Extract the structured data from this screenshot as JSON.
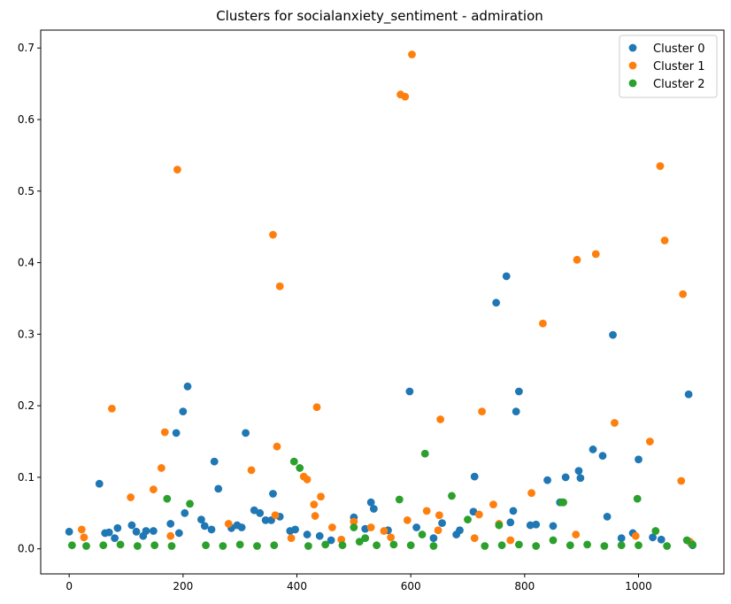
{
  "chart_data": {
    "type": "scatter",
    "title": "Clusters for socialanxiety_sentiment - admiration",
    "xlabel": "",
    "ylabel": "",
    "xlim": [
      -50,
      1150
    ],
    "ylim": [
      -0.035,
      0.725
    ],
    "xticks": [
      0,
      200,
      400,
      600,
      800,
      1000
    ],
    "yticks": [
      0.0,
      0.1,
      0.2,
      0.3,
      0.4,
      0.5,
      0.6,
      0.7
    ],
    "grid": false,
    "legend_position": "top-right",
    "series": [
      {
        "name": "Cluster 0",
        "color": "#1f77b4",
        "points": [
          [
            0,
            0.024
          ],
          [
            53,
            0.091
          ],
          [
            63,
            0.022
          ],
          [
            70,
            0.023
          ],
          [
            80,
            0.015
          ],
          [
            85,
            0.029
          ],
          [
            110,
            0.033
          ],
          [
            118,
            0.024
          ],
          [
            130,
            0.018
          ],
          [
            135,
            0.025
          ],
          [
            148,
            0.025
          ],
          [
            178,
            0.035
          ],
          [
            188,
            0.162
          ],
          [
            193,
            0.022
          ],
          [
            200,
            0.192
          ],
          [
            203,
            0.05
          ],
          [
            208,
            0.227
          ],
          [
            232,
            0.041
          ],
          [
            238,
            0.032
          ],
          [
            250,
            0.027
          ],
          [
            255,
            0.122
          ],
          [
            262,
            0.084
          ],
          [
            285,
            0.029
          ],
          [
            295,
            0.033
          ],
          [
            303,
            0.03
          ],
          [
            310,
            0.162
          ],
          [
            325,
            0.054
          ],
          [
            335,
            0.05
          ],
          [
            345,
            0.04
          ],
          [
            355,
            0.04
          ],
          [
            358,
            0.077
          ],
          [
            370,
            0.045
          ],
          [
            388,
            0.025
          ],
          [
            397,
            0.027
          ],
          [
            418,
            0.02
          ],
          [
            440,
            0.018
          ],
          [
            460,
            0.012
          ],
          [
            500,
            0.044
          ],
          [
            520,
            0.028
          ],
          [
            530,
            0.065
          ],
          [
            535,
            0.056
          ],
          [
            560,
            0.026
          ],
          [
            598,
            0.22
          ],
          [
            610,
            0.03
          ],
          [
            640,
            0.015
          ],
          [
            655,
            0.036
          ],
          [
            680,
            0.02
          ],
          [
            686,
            0.026
          ],
          [
            712,
            0.101
          ],
          [
            710,
            0.052
          ],
          [
            750,
            0.344
          ],
          [
            768,
            0.381
          ],
          [
            775,
            0.037
          ],
          [
            780,
            0.053
          ],
          [
            785,
            0.192
          ],
          [
            790,
            0.22
          ],
          [
            810,
            0.033
          ],
          [
            820,
            0.034
          ],
          [
            840,
            0.096
          ],
          [
            850,
            0.032
          ],
          [
            862,
            0.065
          ],
          [
            872,
            0.1
          ],
          [
            895,
            0.109
          ],
          [
            898,
            0.099
          ],
          [
            920,
            0.139
          ],
          [
            937,
            0.13
          ],
          [
            945,
            0.045
          ],
          [
            955,
            0.299
          ],
          [
            970,
            0.015
          ],
          [
            990,
            0.022
          ],
          [
            1000,
            0.125
          ],
          [
            1025,
            0.016
          ],
          [
            1040,
            0.013
          ],
          [
            1088,
            0.216
          ],
          [
            1092,
            0.008
          ],
          [
            1095,
            0.005
          ]
        ]
      },
      {
        "name": "Cluster 1",
        "color": "#ff7f0e",
        "points": [
          [
            22,
            0.027
          ],
          [
            26,
            0.016
          ],
          [
            75,
            0.196
          ],
          [
            108,
            0.072
          ],
          [
            148,
            0.083
          ],
          [
            162,
            0.113
          ],
          [
            168,
            0.163
          ],
          [
            178,
            0.018
          ],
          [
            190,
            0.53
          ],
          [
            280,
            0.035
          ],
          [
            320,
            0.11
          ],
          [
            358,
            0.439
          ],
          [
            362,
            0.047
          ],
          [
            365,
            0.143
          ],
          [
            370,
            0.367
          ],
          [
            390,
            0.015
          ],
          [
            412,
            0.101
          ],
          [
            418,
            0.097
          ],
          [
            430,
            0.062
          ],
          [
            432,
            0.046
          ],
          [
            435,
            0.198
          ],
          [
            442,
            0.073
          ],
          [
            462,
            0.03
          ],
          [
            478,
            0.013
          ],
          [
            500,
            0.038
          ],
          [
            530,
            0.03
          ],
          [
            553,
            0.025
          ],
          [
            565,
            0.016
          ],
          [
            582,
            0.635
          ],
          [
            590,
            0.632
          ],
          [
            594,
            0.04
          ],
          [
            602,
            0.691
          ],
          [
            628,
            0.053
          ],
          [
            648,
            0.026
          ],
          [
            650,
            0.047
          ],
          [
            652,
            0.181
          ],
          [
            712,
            0.015
          ],
          [
            720,
            0.048
          ],
          [
            725,
            0.192
          ],
          [
            745,
            0.062
          ],
          [
            755,
            0.035
          ],
          [
            775,
            0.012
          ],
          [
            812,
            0.078
          ],
          [
            832,
            0.315
          ],
          [
            890,
            0.02
          ],
          [
            892,
            0.404
          ],
          [
            925,
            0.412
          ],
          [
            958,
            0.176
          ],
          [
            995,
            0.018
          ],
          [
            1020,
            0.15
          ],
          [
            1038,
            0.535
          ],
          [
            1046,
            0.431
          ],
          [
            1075,
            0.095
          ],
          [
            1078,
            0.356
          ],
          [
            1090,
            0.01
          ]
        ]
      },
      {
        "name": "Cluster 2",
        "color": "#2ca02c",
        "points": [
          [
            5,
            0.005
          ],
          [
            30,
            0.004
          ],
          [
            60,
            0.005
          ],
          [
            90,
            0.006
          ],
          [
            120,
            0.004
          ],
          [
            150,
            0.005
          ],
          [
            172,
            0.07
          ],
          [
            180,
            0.004
          ],
          [
            212,
            0.063
          ],
          [
            240,
            0.005
          ],
          [
            270,
            0.004
          ],
          [
            300,
            0.006
          ],
          [
            330,
            0.004
          ],
          [
            360,
            0.005
          ],
          [
            395,
            0.122
          ],
          [
            405,
            0.113
          ],
          [
            420,
            0.004
          ],
          [
            450,
            0.006
          ],
          [
            480,
            0.005
          ],
          [
            500,
            0.03
          ],
          [
            510,
            0.01
          ],
          [
            520,
            0.015
          ],
          [
            540,
            0.005
          ],
          [
            570,
            0.006
          ],
          [
            580,
            0.069
          ],
          [
            600,
            0.005
          ],
          [
            620,
            0.02
          ],
          [
            625,
            0.133
          ],
          [
            640,
            0.004
          ],
          [
            672,
            0.074
          ],
          [
            700,
            0.041
          ],
          [
            730,
            0.004
          ],
          [
            755,
            0.033
          ],
          [
            760,
            0.005
          ],
          [
            790,
            0.006
          ],
          [
            820,
            0.004
          ],
          [
            850,
            0.012
          ],
          [
            865,
            0.065
          ],
          [
            868,
            0.065
          ],
          [
            880,
            0.005
          ],
          [
            910,
            0.006
          ],
          [
            940,
            0.004
          ],
          [
            970,
            0.005
          ],
          [
            998,
            0.07
          ],
          [
            1000,
            0.005
          ],
          [
            1030,
            0.025
          ],
          [
            1050,
            0.004
          ],
          [
            1085,
            0.012
          ],
          [
            1095,
            0.006
          ]
        ]
      }
    ]
  }
}
